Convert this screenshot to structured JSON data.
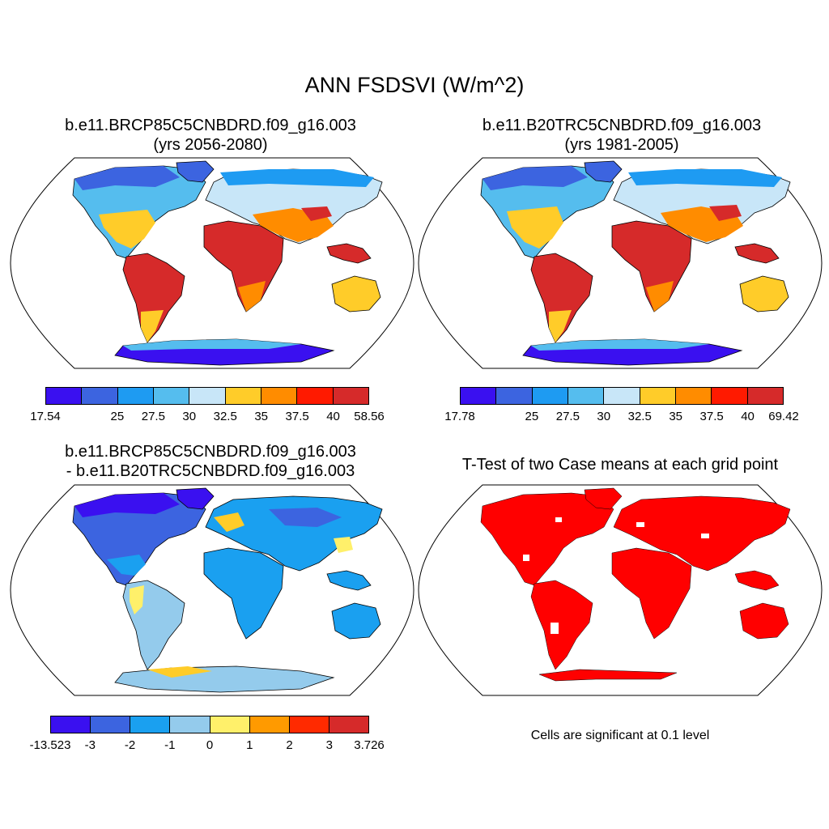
{
  "main_title": "ANN FSDSVI (W/m^2)",
  "panels": {
    "top_left": {
      "title_line1": "b.e11.BRCP85C5CNBDRD.f09_g16.003",
      "title_line2": "(yrs 2056-2080)",
      "colorbar": {
        "colors": [
          "#3a10f0",
          "#3c64e0",
          "#1e9bf2",
          "#55bdee",
          "#c8e6f8",
          "#ffcc29",
          "#ff8c00",
          "#ff1a00",
          "#d62a2a"
        ],
        "labels": [
          "17.54",
          "25",
          "27.5",
          "30",
          "32.5",
          "35",
          "37.5",
          "40",
          "58.56"
        ]
      }
    },
    "top_right": {
      "title_line1": "b.e11.B20TRC5CNBDRD.f09_g16.003",
      "title_line2": "(yrs 1981-2005)",
      "colorbar": {
        "colors": [
          "#3a10f0",
          "#3c64e0",
          "#1e9bf2",
          "#55bdee",
          "#c8e6f8",
          "#ffcc29",
          "#ff8c00",
          "#ff1a00",
          "#d62a2a"
        ],
        "labels": [
          "17.78",
          "25",
          "27.5",
          "30",
          "32.5",
          "35",
          "37.5",
          "40",
          "69.42"
        ]
      }
    },
    "bottom_left": {
      "title_line1": "b.e11.BRCP85C5CNBDRD.f09_g16.003",
      "title_line2": "- b.e11.B20TRC5CNBDRD.f09_g16.003",
      "colorbar": {
        "colors": [
          "#3a10f0",
          "#3c64e0",
          "#1aa0f0",
          "#94cbec",
          "#fff06a",
          "#ff9a00",
          "#ff2a00",
          "#d62a2a"
        ],
        "labels": [
          "-13.523",
          "-3",
          "-2",
          "-1",
          "0",
          "1",
          "2",
          "3",
          "3.726"
        ]
      }
    },
    "bottom_right": {
      "title_line1": "T-Test of two Case means at each grid point",
      "note": "Cells are significant at 0.1 level",
      "fill_color": "#ff0000"
    }
  }
}
